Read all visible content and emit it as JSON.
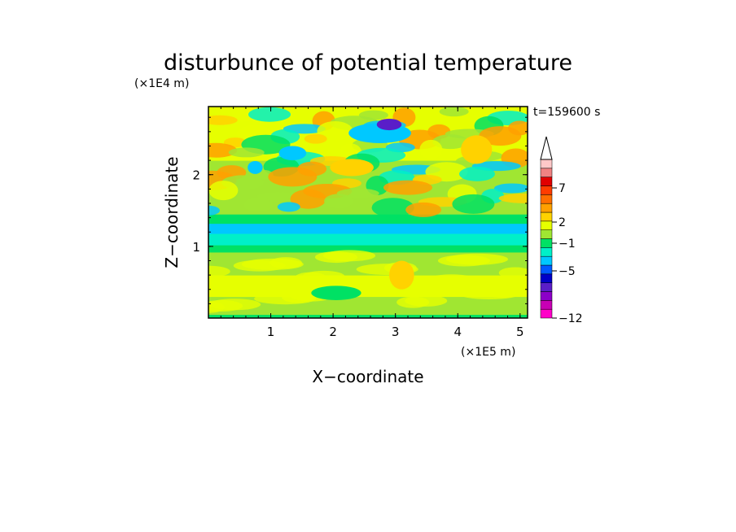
{
  "chart_data": {
    "type": "heatmap",
    "title": "disturbunce of potential temperature",
    "time_label": "t=159600 s",
    "xlabel": "X−coordinate",
    "ylabel": "Z−coordinate",
    "x_unit": "(×1E5 m)",
    "y_unit": "(×1E4 m)",
    "xlim": [
      0,
      5.12
    ],
    "ylim": [
      0,
      2.95
    ],
    "x_ticks": [
      "1",
      "2",
      "3",
      "4",
      "5"
    ],
    "y_ticks": [
      "1",
      "2"
    ],
    "colorbar_labels": [
      "7",
      "2",
      "−1",
      "−5",
      "−12"
    ],
    "colorbar_colors": [
      "#ff00c8",
      "#c800b4",
      "#8c00c8",
      "#5a1ec8",
      "#0000c8",
      "#005aff",
      "#00c8ff",
      "#00f0c8",
      "#00e164",
      "#a0e632",
      "#e6ff00",
      "#ffd200",
      "#ffa000",
      "#ff6e00",
      "#ff3c00",
      "#e10000",
      "#f08282",
      "#ffc8c8"
    ],
    "bands": [
      {
        "z": [
          0.0,
          0.05
        ],
        "value": -1
      },
      {
        "z": [
          0.05,
          0.12
        ],
        "value": 0
      },
      {
        "z": [
          0.12,
          0.3
        ],
        "value": 1
      },
      {
        "z": [
          0.3,
          0.6
        ],
        "value": 1.6
      },
      {
        "z": [
          0.6,
          0.92
        ],
        "value": 1
      },
      {
        "z": [
          0.92,
          1.02
        ],
        "value": -0.5
      },
      {
        "z": [
          1.02,
          1.18
        ],
        "value": -1.5
      },
      {
        "z": [
          1.18,
          1.32
        ],
        "value": -4
      },
      {
        "z": [
          1.32,
          1.45
        ],
        "value": -1
      },
      {
        "z": [
          1.45,
          1.7
        ],
        "value": 0.5
      },
      {
        "z": [
          1.7,
          2.2
        ],
        "value": 1.2
      },
      {
        "z": [
          2.2,
          2.95
        ],
        "value": 1.8
      }
    ],
    "features": [
      {
        "x": 2.75,
        "z": 2.58,
        "rx": 0.5,
        "rz": 0.14,
        "value": -4
      },
      {
        "x": 2.9,
        "z": 2.7,
        "rx": 0.2,
        "rz": 0.08,
        "value": -7
      },
      {
        "x": 1.35,
        "z": 2.3,
        "rx": 0.22,
        "rz": 0.1,
        "value": -4
      },
      {
        "x": 0.75,
        "z": 2.1,
        "rx": 0.12,
        "rz": 0.09,
        "value": -4
      },
      {
        "x": 2.3,
        "z": 2.1,
        "rx": 0.35,
        "rz": 0.12,
        "value": 3.5
      },
      {
        "x": 4.3,
        "z": 2.35,
        "rx": 0.25,
        "rz": 0.2,
        "value": 3.5
      },
      {
        "x": 3.1,
        "z": 0.6,
        "rx": 0.2,
        "rz": 0.2,
        "value": 3.5
      },
      {
        "x": 2.05,
        "z": 0.35,
        "rx": 0.4,
        "rz": 0.1,
        "value": -1
      }
    ]
  }
}
